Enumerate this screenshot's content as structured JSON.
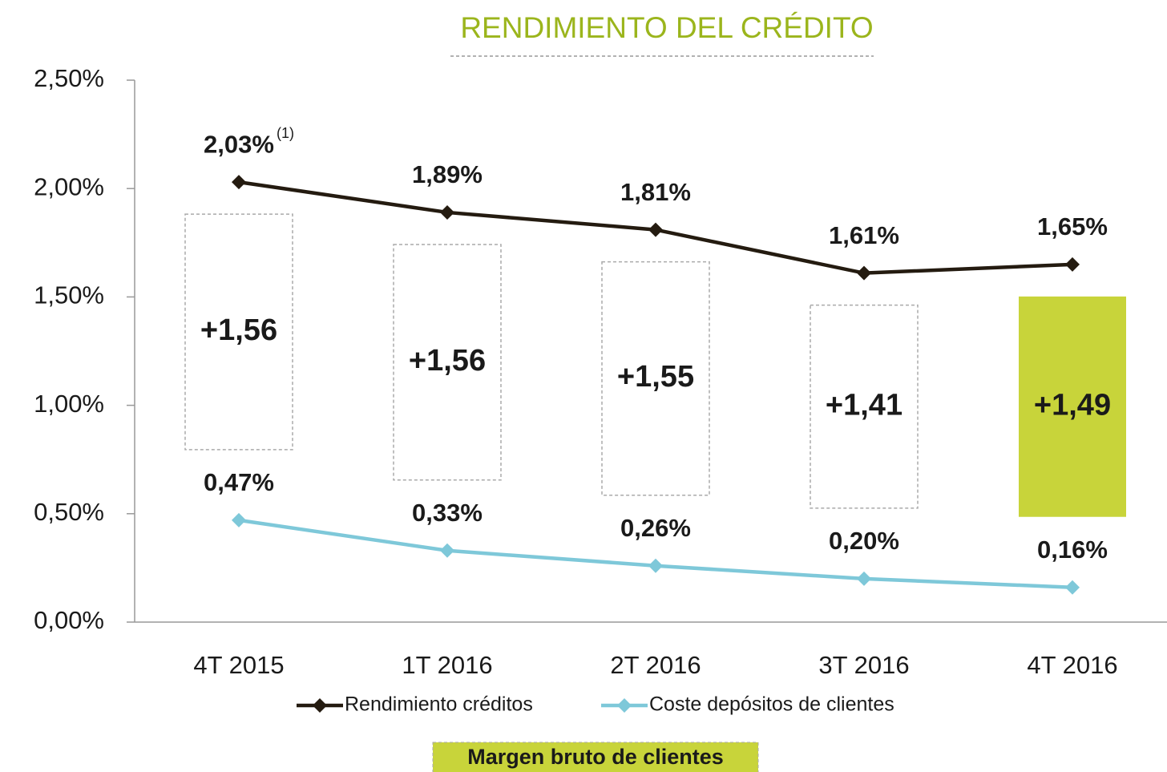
{
  "chart_data": {
    "type": "line",
    "title": "RENDIMIENTO DEL CRÉDITO",
    "title_color": "#9bb51c",
    "categories": [
      "4T 2015",
      "1T 2016",
      "2T 2016",
      "3T 2016",
      "4T 2016"
    ],
    "series": [
      {
        "name": "Rendimiento créditos",
        "color": "#241b10",
        "values": [
          2.03,
          1.89,
          1.81,
          1.61,
          1.65
        ],
        "value_labels": [
          "2,03%",
          "1,89%",
          "1,81%",
          "1,61%",
          "1,65%"
        ]
      },
      {
        "name": "Coste depósitos de clientes",
        "color": "#7ec8d9",
        "values": [
          0.47,
          0.33,
          0.26,
          0.2,
          0.16
        ],
        "value_labels": [
          "0,47%",
          "0,33%",
          "0,26%",
          "0,20%",
          "0,16%"
        ]
      }
    ],
    "margin": {
      "name": "Margen bruto de clientes",
      "values": [
        1.56,
        1.56,
        1.55,
        1.41,
        1.49
      ],
      "value_labels": [
        "+1,56",
        "+1,56",
        "+1,55",
        "+1,41",
        "+1,49"
      ],
      "colors": [
        "#ffffff",
        "#ffffff",
        "#ffffff",
        "#ffffff",
        "#c8d43a"
      ],
      "legend_color": "#c8d43a"
    },
    "footnote_marker": "(1)",
    "ylim": [
      0,
      2.5
    ],
    "yticks": [
      {
        "value": 0,
        "label": "0,00%"
      },
      {
        "value": 0.5,
        "label": "0,50%"
      },
      {
        "value": 1,
        "label": "1,00%"
      },
      {
        "value": 1.5,
        "label": "1,50%"
      },
      {
        "value": 2,
        "label": "2,00%"
      },
      {
        "value": 2.5,
        "label": "2,50%"
      }
    ],
    "legend": "bottom"
  }
}
